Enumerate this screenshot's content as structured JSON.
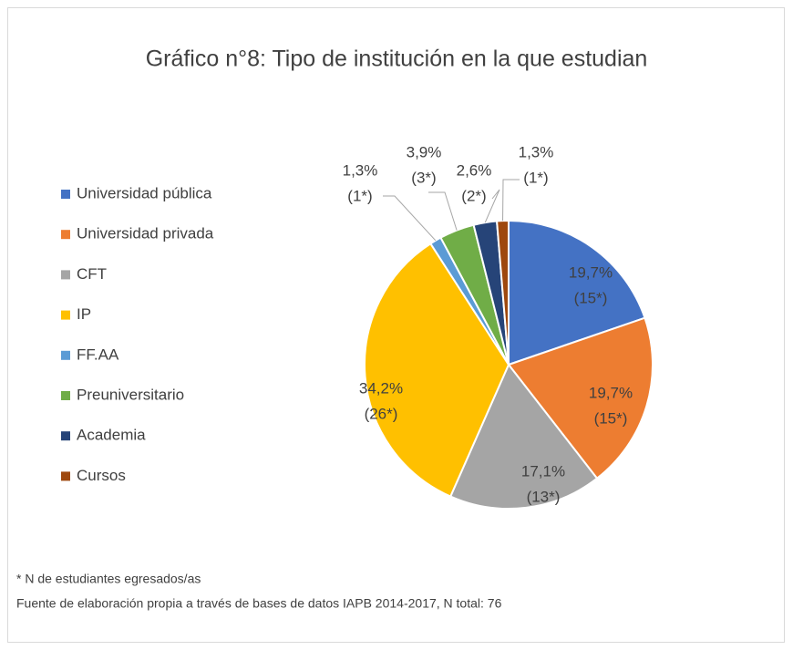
{
  "chart_data": {
    "type": "pie",
    "title": "Gráfico n°8: Tipo de institución en la que estudian",
    "categories": [
      "Universidad pública",
      "Universidad privada",
      "CFT",
      "IP",
      "FF.AA",
      "Preuniversitario",
      "Academia",
      "Cursos"
    ],
    "values": [
      19.7,
      19.7,
      17.1,
      34.2,
      1.3,
      3.9,
      2.6,
      1.3
    ],
    "value_labels": [
      "19,7%",
      "19,7%",
      "17,1%",
      "34,2%",
      "1,3%",
      "3,9%",
      "2,6%",
      "1,3%"
    ],
    "counts": [
      15,
      15,
      13,
      26,
      1,
      3,
      2,
      1
    ],
    "count_labels": [
      "(15*)",
      "(15*)",
      "(13*)",
      "(26*)",
      "(1*)",
      "(3*)",
      "(2*)",
      "(1*)"
    ],
    "colors": [
      "#4472c4",
      "#ed7d31",
      "#a5a5a5",
      "#ffc000",
      "#5b9bd5",
      "#70ad47",
      "#264478",
      "#9e480e"
    ],
    "legend": "left",
    "notes": [
      "* N de estudiantes egresados/as",
      "Fuente de elaboración propia a través de bases de datos IAPB 2014-2017, N total: 76"
    ]
  }
}
